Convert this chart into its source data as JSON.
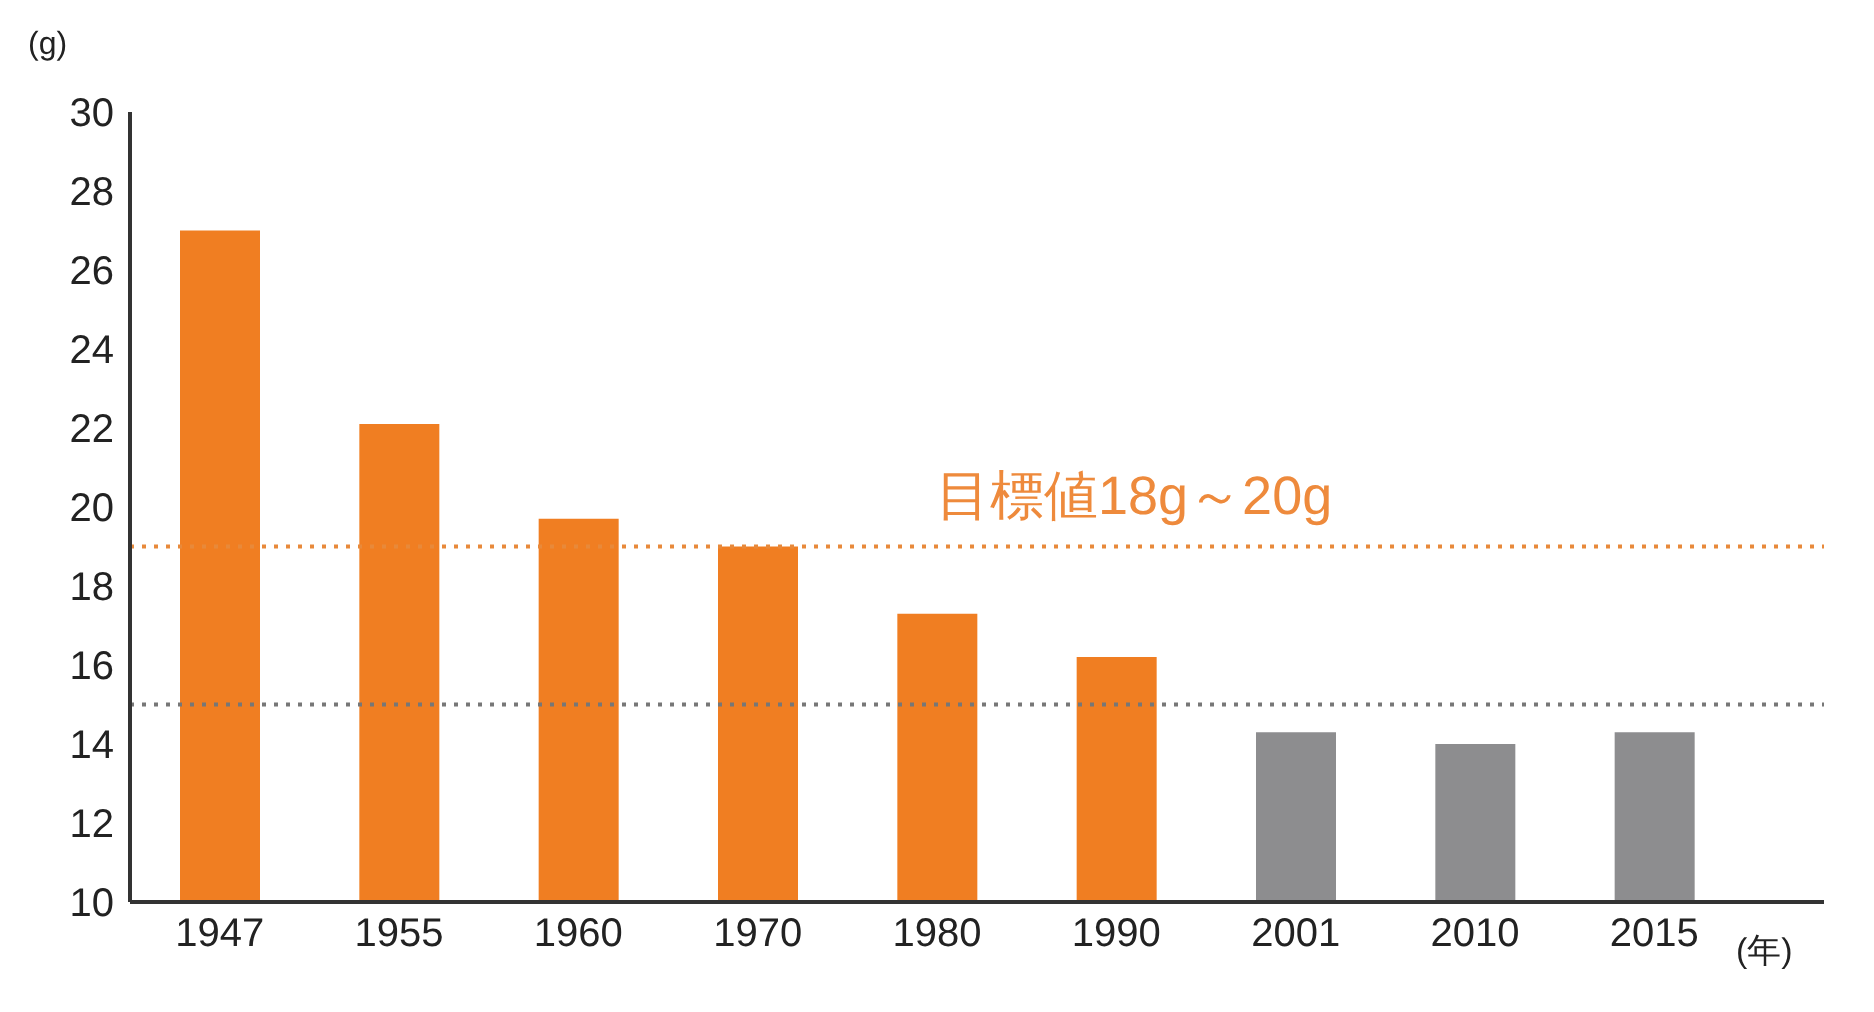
{
  "chart_data": {
    "type": "bar",
    "ylabel": "(g)",
    "xlabel": "(年)",
    "categories": [
      "1947",
      "1955",
      "1960",
      "1970",
      "1980",
      "1990",
      "2001",
      "2010",
      "2015"
    ],
    "values": [
      27.0,
      22.1,
      19.7,
      19.0,
      17.3,
      16.2,
      14.3,
      14.0,
      14.3
    ],
    "colors": [
      "#f07e22",
      "#f07e22",
      "#f07e22",
      "#f07e22",
      "#f07e22",
      "#f07e22",
      "#8d8d8f",
      "#8d8d8f",
      "#8d8d8f"
    ],
    "ylim": [
      10,
      30
    ],
    "yticks": [
      10,
      12,
      14,
      16,
      18,
      20,
      22,
      24,
      26,
      28,
      30
    ],
    "grid": false,
    "legend": false,
    "ref_lines": [
      {
        "axis": "y",
        "value": 19,
        "color": "#e8893a",
        "line_style": "dotted"
      },
      {
        "axis": "y",
        "value": 15,
        "color": "#777777",
        "line_style": "dotted"
      }
    ],
    "annotations": [
      "目標値18g～20g"
    ]
  }
}
